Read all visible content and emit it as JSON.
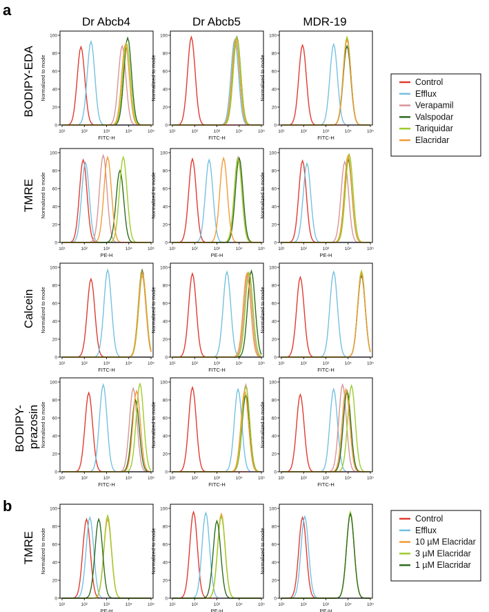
{
  "labels": {
    "panel_a": "a",
    "panel_b": "b"
  },
  "columns": [
    "Dr Abcb4",
    "Dr Abcb5",
    "MDR-19"
  ],
  "row_titles": [
    "BODIPY-EDA",
    "TMRE",
    "Calcein",
    "BODIPY-\nprazosin",
    "TMRE"
  ],
  "colors": {
    "Control": "#e03a2f",
    "Efflux": "#74c0e0",
    "Verapamil": "#d99496",
    "Valspodar": "#2e6b1e",
    "Tariquidar": "#9ccc2a",
    "Elacridar": "#f29a36",
    "10 µM Elacridar": "#f29a36",
    "3 µM Elacridar": "#9ccc2a",
    "1 µM Elacridar": "#2e6b1e"
  },
  "legend_a": [
    "Control",
    "Efflux",
    "Verapamil",
    "Valspodar",
    "Tariquidar",
    "Elacridar"
  ],
  "legend_b": [
    "Control",
    "Efflux",
    "10 µM Elacridar",
    "3 µM Elacridar",
    "1 µM Elacridar"
  ],
  "chart_data": [
    {
      "type": "histogram-grid",
      "row": "BODIPY-EDA",
      "channel_label": "FITC-H",
      "ylabel": "Normalized to mode",
      "xscale": "log",
      "xlim": [
        10,
        100000
      ],
      "ylim": [
        0,
        100
      ],
      "yticks": [
        0,
        20,
        40,
        60,
        80,
        100
      ],
      "xticks": [
        "10¹",
        "10²",
        "10³",
        "10⁴",
        "10⁵"
      ],
      "panels": [
        {
          "column": "Dr Abcb4",
          "peaks_log10": {
            "Control": 1.85,
            "Efflux": 2.3,
            "Verapamil": 3.7,
            "Valspodar": 3.95,
            "Tariquidar": 3.9,
            "Elacridar": 3.85
          },
          "peak_heights": {
            "Control": 87,
            "Efflux": 93,
            "Verapamil": 88,
            "Valspodar": 97,
            "Tariquidar": 91,
            "Elacridar": 90
          }
        },
        {
          "column": "Dr Abcb5",
          "peaks_log10": {
            "Control": 1.85,
            "Efflux": 3.8,
            "Verapamil": 3.85,
            "Valspodar": 3.9,
            "Tariquidar": 3.9,
            "Elacridar": 3.85
          },
          "peak_heights": {
            "Control": 98,
            "Efflux": 95,
            "Verapamil": 96,
            "Valspodar": 98,
            "Tariquidar": 97,
            "Elacridar": 96
          }
        },
        {
          "column": "MDR-19",
          "peaks_log10": {
            "Control": 1.95,
            "Efflux": 3.35,
            "Verapamil": 3.95,
            "Valspodar": 3.95,
            "Tariquidar": 3.95,
            "Elacridar": 3.95
          },
          "peak_heights": {
            "Control": 89,
            "Efflux": 90,
            "Verapamil": 96,
            "Valspodar": 88,
            "Tariquidar": 98,
            "Elacridar": 95
          }
        }
      ]
    },
    {
      "type": "histogram-grid",
      "row": "TMRE",
      "channel_label": "PE-H",
      "ylabel": "Normalized to mode",
      "xscale": "log",
      "xlim": [
        10,
        100000
      ],
      "ylim": [
        0,
        100
      ],
      "yticks": [
        0,
        20,
        40,
        60,
        80,
        100
      ],
      "xticks": [
        "10¹",
        "10²",
        "10³",
        "10⁴",
        "10⁵"
      ],
      "panels": [
        {
          "column": "Dr Abcb4",
          "peaks_log10": {
            "Control": 1.95,
            "Efflux": 2.05,
            "Verapamil": 2.85,
            "Valspodar": 3.6,
            "Tariquidar": 3.75,
            "Elacridar": 3.05
          },
          "peak_heights": {
            "Control": 92,
            "Efflux": 89,
            "Verapamil": 97,
            "Valspodar": 80,
            "Tariquidar": 95,
            "Elacridar": 95
          }
        },
        {
          "column": "Dr Abcb5",
          "peaks_log10": {
            "Control": 1.9,
            "Efflux": 2.65,
            "Verapamil": 3.95,
            "Valspodar": 4.0,
            "Tariquidar": 3.95,
            "Elacridar": 3.3
          },
          "peak_heights": {
            "Control": 93,
            "Efflux": 92,
            "Verapamil": 95,
            "Valspodar": 94,
            "Tariquidar": 93,
            "Elacridar": 94
          }
        },
        {
          "column": "MDR-19",
          "peaks_log10": {
            "Control": 1.95,
            "Efflux": 2.15,
            "Verapamil": 3.85,
            "Valspodar": 4.0,
            "Tariquidar": 4.05,
            "Elacridar": 4.0
          },
          "peak_heights": {
            "Control": 91,
            "Efflux": 88,
            "Verapamil": 90,
            "Valspodar": 93,
            "Tariquidar": 98,
            "Elacridar": 97
          }
        }
      ]
    },
    {
      "type": "histogram-grid",
      "row": "Calcein",
      "channel_label": "FITC-H",
      "ylabel": "Normalized to mode",
      "xscale": "log",
      "xlim": [
        10,
        100000
      ],
      "ylim": [
        0,
        100
      ],
      "yticks": [
        0,
        20,
        40,
        60,
        80,
        100
      ],
      "xticks": [
        "10¹",
        "10²",
        "10³",
        "10⁴",
        "10⁵"
      ],
      "panels": [
        {
          "column": "Dr Abcb4",
          "peaks_log10": {
            "Control": 2.3,
            "Efflux": 3.05,
            "Verapamil": 4.6,
            "Valspodar": 4.6,
            "Tariquidar": 4.62,
            "Elacridar": 4.6
          },
          "peak_heights": {
            "Control": 87,
            "Efflux": 97,
            "Verapamil": 91,
            "Valspodar": 97,
            "Tariquidar": 93,
            "Elacridar": 95
          }
        },
        {
          "column": "Dr Abcb5",
          "peaks_log10": {
            "Control": 1.9,
            "Efflux": 3.45,
            "Verapamil": 4.4,
            "Valspodar": 4.55,
            "Tariquidar": 4.45,
            "Elacridar": 4.35
          },
          "peak_heights": {
            "Control": 93,
            "Efflux": 95,
            "Verapamil": 94,
            "Valspodar": 96,
            "Tariquidar": 94,
            "Elacridar": 93
          }
        },
        {
          "column": "MDR-19",
          "peaks_log10": {
            "Control": 1.85,
            "Efflux": 3.35,
            "Verapamil": 4.6,
            "Valspodar": 4.6,
            "Tariquidar": 4.6,
            "Elacridar": 4.6
          },
          "peak_heights": {
            "Control": 89,
            "Efflux": 95,
            "Verapamil": 95,
            "Valspodar": 91,
            "Tariquidar": 96,
            "Elacridar": 93
          }
        }
      ]
    },
    {
      "type": "histogram-grid",
      "row": "BODIPY-prazosin",
      "channel_label": "FITC-H",
      "ylabel": "Normalized to mode",
      "xscale": "log",
      "xlim": [
        10,
        100000
      ],
      "ylim": [
        0,
        100
      ],
      "yticks": [
        0,
        20,
        40,
        60,
        80,
        100
      ],
      "xticks": [
        "10¹",
        "10²",
        "10³",
        "10⁴",
        "10⁵"
      ],
      "panels": [
        {
          "column": "Dr Abcb4",
          "peaks_log10": {
            "Control": 2.2,
            "Efflux": 2.85,
            "Verapamil": 4.2,
            "Valspodar": 4.3,
            "Tariquidar": 4.5,
            "Elacridar": 4.35
          },
          "peak_heights": {
            "Control": 88,
            "Efflux": 97,
            "Verapamil": 93,
            "Valspodar": 80,
            "Tariquidar": 98,
            "Elacridar": 90
          }
        },
        {
          "column": "Dr Abcb5",
          "peaks_log10": {
            "Control": 1.9,
            "Efflux": 3.95,
            "Verapamil": 4.3,
            "Valspodar": 4.3,
            "Tariquidar": 4.3,
            "Elacridar": 4.25
          },
          "peak_heights": {
            "Control": 94,
            "Efflux": 92,
            "Verapamil": 97,
            "Valspodar": 86,
            "Tariquidar": 95,
            "Elacridar": 90
          }
        },
        {
          "column": "MDR-19",
          "peaks_log10": {
            "Control": 1.85,
            "Efflux": 3.35,
            "Verapamil": 3.75,
            "Valspodar": 3.95,
            "Tariquidar": 4.15,
            "Elacridar": 3.9
          },
          "peak_heights": {
            "Control": 86,
            "Efflux": 92,
            "Verapamil": 97,
            "Valspodar": 90,
            "Tariquidar": 96,
            "Elacridar": 92
          }
        }
      ]
    },
    {
      "type": "histogram-grid",
      "row": "TMRE (b)",
      "channel_label": "PE-H",
      "ylabel": "Normalized to mode",
      "xscale": "log",
      "xlim": [
        10,
        100000
      ],
      "ylim": [
        0,
        100
      ],
      "yticks": [
        0,
        20,
        40,
        60,
        80,
        100
      ],
      "xticks": [
        "10¹",
        "10²",
        "10³",
        "10⁴",
        "10⁵"
      ],
      "panels": [
        {
          "column": "Dr Abcb4",
          "peaks_log10": {
            "Control": 2.1,
            "Efflux": 2.25,
            "10 µM Elacridar": 3.05,
            "3 µM Elacridar": 3.05,
            "1 µM Elacridar": 2.65
          },
          "peak_heights": {
            "Control": 88,
            "Efflux": 90,
            "10 µM Elacridar": 88,
            "3 µM Elacridar": 92,
            "1 µM Elacridar": 88
          }
        },
        {
          "column": "Dr Abcb5",
          "peaks_log10": {
            "Control": 1.95,
            "Efflux": 2.5,
            "10 µM Elacridar": 3.2,
            "3 µM Elacridar": 3.2,
            "1 µM Elacridar": 3.0
          },
          "peak_heights": {
            "Control": 96,
            "Efflux": 95,
            "10 µM Elacridar": 94,
            "3 µM Elacridar": 91,
            "1 µM Elacridar": 86
          }
        },
        {
          "column": "MDR-19",
          "peaks_log10": {
            "Control": 1.95,
            "Efflux": 2.05,
            "10 µM Elacridar": 4.1,
            "3 µM Elacridar": 4.1,
            "1 µM Elacridar": 4.1
          },
          "peak_heights": {
            "Control": 90,
            "Efflux": 91,
            "10 µM Elacridar": 95,
            "3 µM Elacridar": 96,
            "1 µM Elacridar": 94
          }
        }
      ]
    }
  ]
}
